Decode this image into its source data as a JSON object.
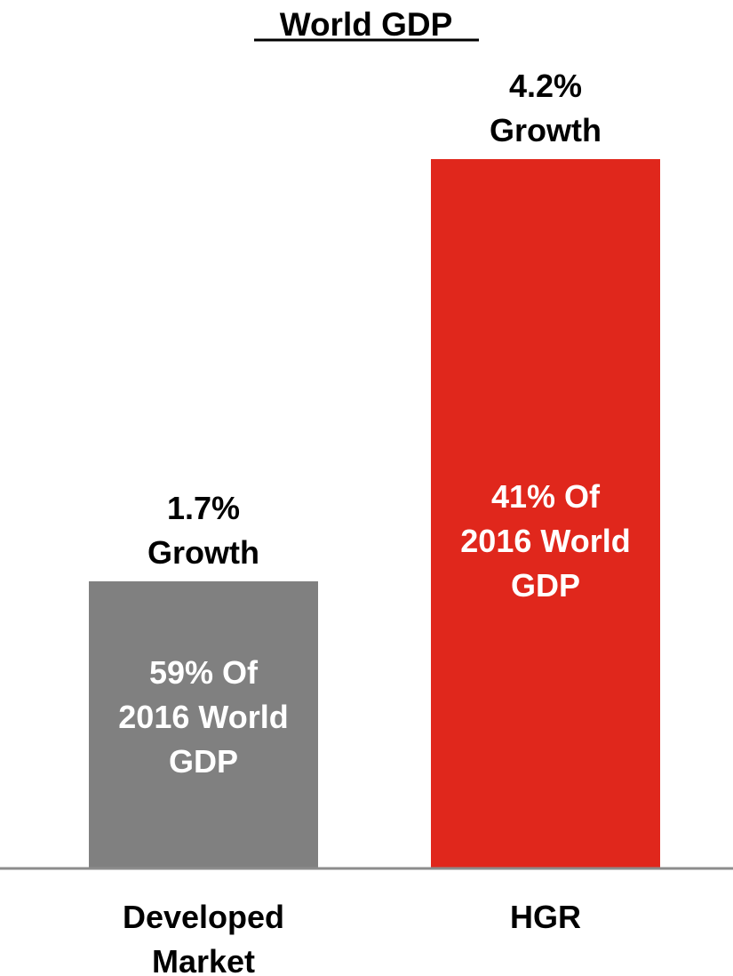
{
  "chart_data": {
    "type": "bar",
    "title": "World GDP",
    "categories": [
      "Developed Market",
      "HGR"
    ],
    "category_lines": [
      [
        "Developed",
        "Market"
      ],
      [
        "HGR"
      ]
    ],
    "values": [
      1.7,
      4.2
    ],
    "value_unit": "% growth",
    "top_labels": [
      [
        "1.7%",
        "Growth"
      ],
      [
        "4.2%",
        "Growth"
      ]
    ],
    "inner_labels": [
      [
        "59% Of",
        "2016 World",
        "GDP"
      ],
      [
        "41% Of",
        "2016 World",
        "GDP"
      ]
    ],
    "shares_2016_world_gdp_pct": [
      59,
      41
    ],
    "colors": [
      "#808080",
      "#e0271c"
    ],
    "ylim": [
      0,
      4.6
    ],
    "grid": false,
    "legend": "none",
    "xlabel": "",
    "ylabel": ""
  }
}
